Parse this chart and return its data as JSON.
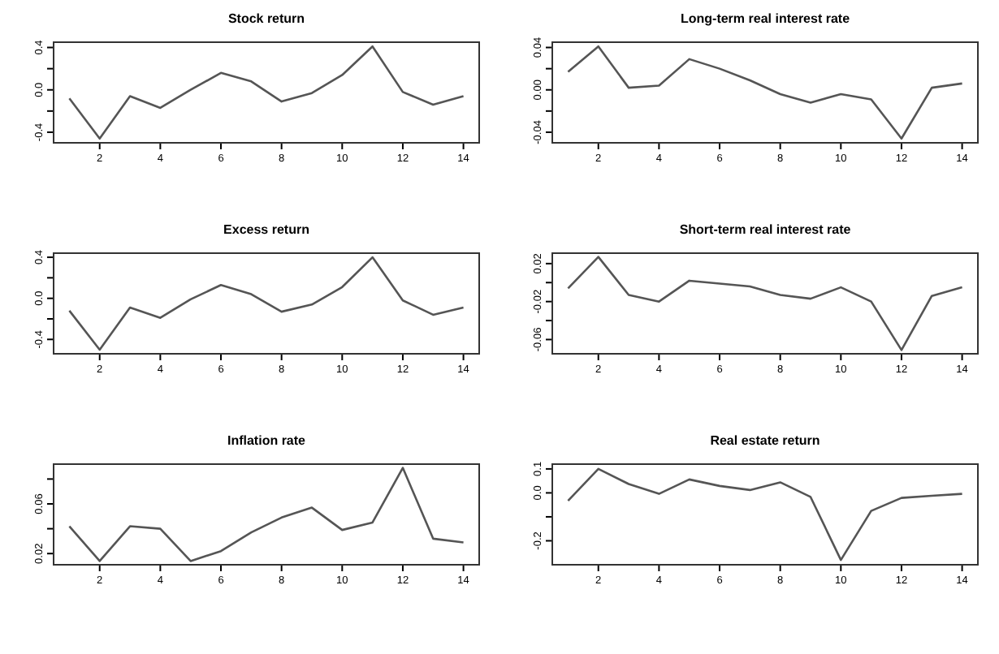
{
  "chart_data": [
    {
      "type": "line",
      "title": "Stock return",
      "x": [
        1,
        2,
        3,
        4,
        5,
        6,
        7,
        8,
        9,
        10,
        11,
        12,
        13,
        14
      ],
      "series": [
        {
          "color": "#555555",
          "values": [
            -0.08,
            -0.46,
            -0.06,
            -0.17,
            0.0,
            0.16,
            0.08,
            -0.11,
            -0.03,
            0.14,
            0.41,
            -0.02,
            -0.14,
            -0.06
          ]
        }
      ],
      "xlim": [
        0.48,
        14.52
      ],
      "xticks": [
        2,
        4,
        6,
        8,
        10,
        12,
        14
      ],
      "ylim": [
        -0.5,
        0.45
      ],
      "yticks": [
        {
          "value": -0.4,
          "label": "-0.4"
        },
        {
          "value": -0.2,
          "label": null
        },
        {
          "value": 0,
          "label": "0.0"
        },
        {
          "value": 0.2,
          "label": null
        },
        {
          "value": 0.4,
          "label": "0.4"
        }
      ],
      "grid": false
    },
    {
      "type": "line",
      "title": "Long-term real interest rate",
      "x": [
        1,
        2,
        3,
        4,
        5,
        6,
        7,
        8,
        9,
        10,
        11,
        12,
        13,
        14
      ],
      "series": [
        {
          "color": "#555555",
          "values": [
            0.017,
            0.041,
            0.002,
            0.004,
            0.029,
            0.02,
            0.009,
            -0.004,
            -0.012,
            -0.004,
            -0.009,
            -0.046,
            0.002,
            0.006
          ]
        }
      ],
      "xlim": [
        0.48,
        14.52
      ],
      "xticks": [
        2,
        4,
        6,
        8,
        10,
        12,
        14
      ],
      "ylim": [
        -0.05,
        0.045
      ],
      "yticks": [
        {
          "value": -0.04,
          "label": "-0.04"
        },
        {
          "value": -0.02,
          "label": null
        },
        {
          "value": 0,
          "label": "0.00"
        },
        {
          "value": 0.02,
          "label": null
        },
        {
          "value": 0.04,
          "label": "0.04"
        }
      ],
      "grid": false
    },
    {
      "type": "line",
      "title": "Excess return",
      "x": [
        1,
        2,
        3,
        4,
        5,
        6,
        7,
        8,
        9,
        10,
        11,
        12,
        13,
        14
      ],
      "series": [
        {
          "color": "#555555",
          "values": [
            -0.12,
            -0.5,
            -0.09,
            -0.19,
            -0.01,
            0.13,
            0.04,
            -0.13,
            -0.06,
            0.11,
            0.4,
            -0.02,
            -0.16,
            -0.09
          ]
        }
      ],
      "xlim": [
        0.48,
        14.52
      ],
      "xticks": [
        2,
        4,
        6,
        8,
        10,
        12,
        14
      ],
      "ylim": [
        -0.54,
        0.44
      ],
      "yticks": [
        {
          "value": -0.4,
          "label": "-0.4"
        },
        {
          "value": -0.2,
          "label": null
        },
        {
          "value": 0,
          "label": "0.0"
        },
        {
          "value": 0.2,
          "label": null
        },
        {
          "value": 0.4,
          "label": "0.4"
        }
      ],
      "grid": false
    },
    {
      "type": "line",
      "title": "Short-term real interest rate",
      "x": [
        1,
        2,
        3,
        4,
        5,
        6,
        7,
        8,
        9,
        10,
        11,
        12,
        13,
        14
      ],
      "series": [
        {
          "color": "#555555",
          "values": [
            -0.006,
            0.027,
            -0.013,
            -0.02,
            0.002,
            -0.001,
            -0.004,
            -0.013,
            -0.017,
            -0.005,
            -0.02,
            -0.071,
            -0.014,
            -0.005
          ]
        }
      ],
      "xlim": [
        0.48,
        14.52
      ],
      "xticks": [
        2,
        4,
        6,
        8,
        10,
        12,
        14
      ],
      "ylim": [
        -0.075,
        0.031
      ],
      "yticks": [
        {
          "value": -0.06,
          "label": "-0.06"
        },
        {
          "value": -0.04,
          "label": null
        },
        {
          "value": -0.02,
          "label": "-0.02"
        },
        {
          "value": 0,
          "label": null
        },
        {
          "value": 0.02,
          "label": "0.02"
        }
      ],
      "grid": false
    },
    {
      "type": "line",
      "title": "Inflation rate",
      "x": [
        1,
        2,
        3,
        4,
        5,
        6,
        7,
        8,
        9,
        10,
        11,
        12,
        13,
        14
      ],
      "series": [
        {
          "color": "#555555",
          "values": [
            0.042,
            0.014,
            0.042,
            0.04,
            0.014,
            0.022,
            0.037,
            0.049,
            0.057,
            0.039,
            0.045,
            0.089,
            0.032,
            0.029
          ]
        }
      ],
      "xlim": [
        0.48,
        14.52
      ],
      "xticks": [
        2,
        4,
        6,
        8,
        10,
        12,
        14
      ],
      "ylim": [
        0.011,
        0.092
      ],
      "yticks": [
        {
          "value": 0.02,
          "label": "0.02"
        },
        {
          "value": 0.04,
          "label": null
        },
        {
          "value": 0.06,
          "label": "0.06"
        },
        {
          "value": 0.08,
          "label": null
        }
      ],
      "grid": false
    },
    {
      "type": "line",
      "title": "Real estate return",
      "x": [
        1,
        2,
        3,
        4,
        5,
        6,
        7,
        8,
        9,
        10,
        11,
        12,
        13,
        14
      ],
      "series": [
        {
          "color": "#555555",
          "values": [
            -0.033,
            0.1,
            0.037,
            -0.004,
            0.056,
            0.029,
            0.012,
            0.044,
            -0.017,
            -0.28,
            -0.075,
            -0.021,
            -0.012,
            -0.004
          ]
        }
      ],
      "xlim": [
        0.48,
        14.52
      ],
      "xticks": [
        2,
        4,
        6,
        8,
        10,
        12,
        14
      ],
      "ylim": [
        -0.3,
        0.12
      ],
      "yticks": [
        {
          "value": -0.2,
          "label": "-0.2"
        },
        {
          "value": -0.1,
          "label": null
        },
        {
          "value": 0,
          "label": "0.0"
        },
        {
          "value": 0.1,
          "label": "0.1"
        }
      ],
      "grid": false
    }
  ]
}
